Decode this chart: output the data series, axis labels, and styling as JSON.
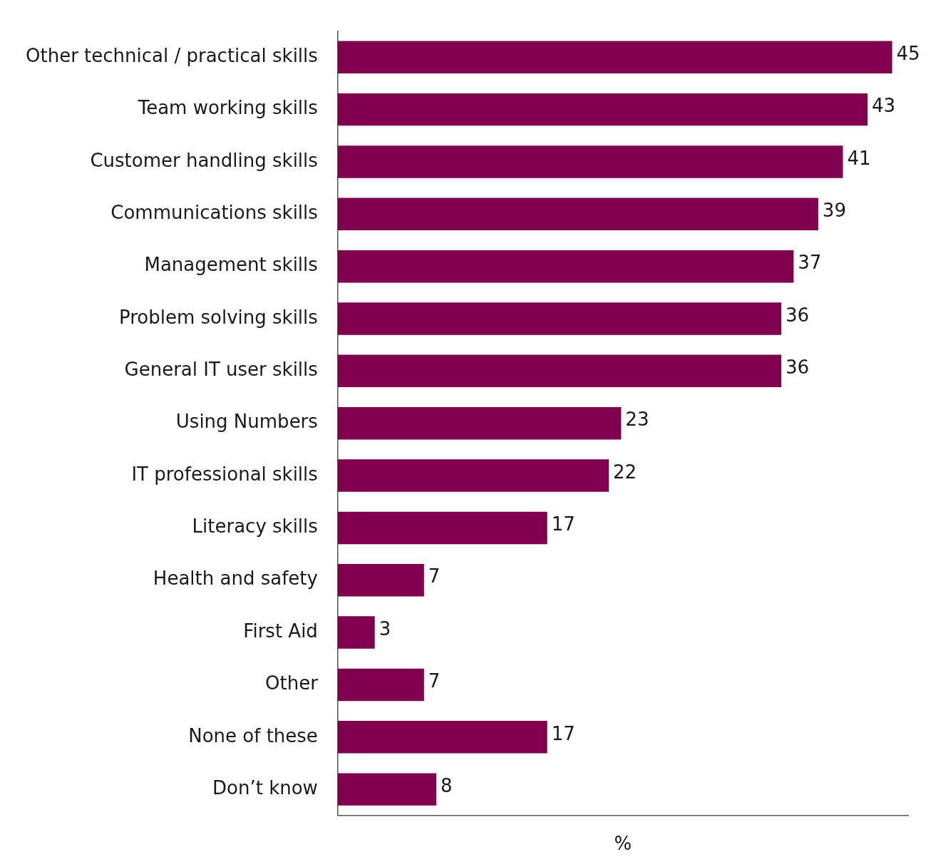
{
  "chart_data": {
    "type": "bar",
    "orientation": "horizontal",
    "xlabel": "%",
    "categories": [
      "Other technical / practical skills",
      "Team working skills",
      "Customer handling skills",
      "Communications skills",
      "Management skills",
      "Problem solving skills",
      "General IT user skills",
      "Using Numbers",
      "IT professional skills",
      "Literacy skills",
      "Health and safety",
      "First Aid",
      "Other",
      "None of these",
      "Don’t know"
    ],
    "values": [
      45,
      43,
      41,
      39,
      37,
      36,
      36,
      23,
      22,
      17,
      7,
      3,
      7,
      17,
      8
    ],
    "color": "#80004f",
    "xlim": [
      0,
      46.3
    ],
    "data_labels": true,
    "tick_labels": "y",
    "grid": false,
    "legend": false
  }
}
